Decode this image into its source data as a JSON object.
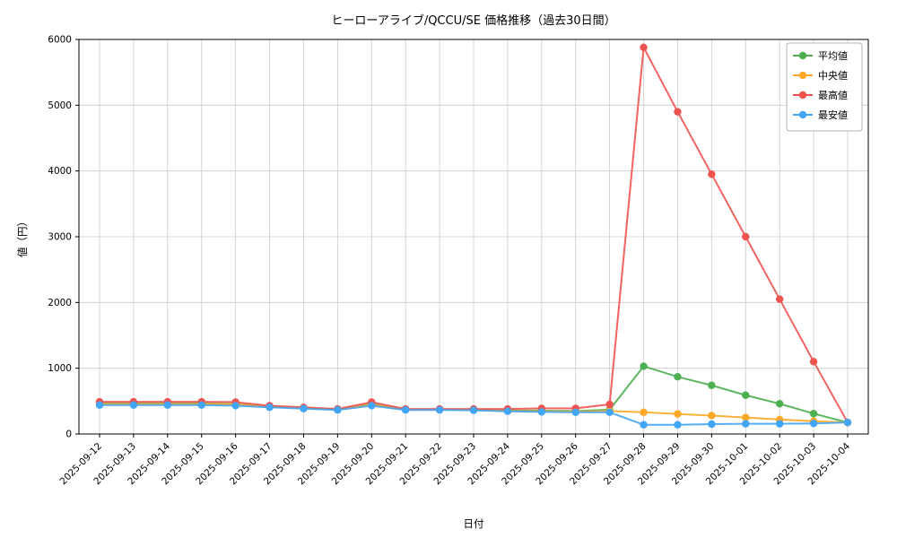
{
  "chart_data": {
    "type": "line",
    "title": "ヒーローアライブ/QCCU/SE 価格推移（過去30日間）",
    "xlabel": "日付",
    "ylabel": "値（円）",
    "ylim": [
      0,
      6000
    ],
    "ytick_step": 1000,
    "grid": true,
    "legend_position": "upper right",
    "categories": [
      "2025-09-12",
      "2025-09-13",
      "2025-09-14",
      "2025-09-15",
      "2025-09-16",
      "2025-09-17",
      "2025-09-18",
      "2025-09-19",
      "2025-09-20",
      "2025-09-21",
      "2025-09-22",
      "2025-09-23",
      "2025-09-24",
      "2025-09-25",
      "2025-09-26",
      "2025-09-27",
      "2025-09-28",
      "2025-09-29",
      "2025-09-30",
      "2025-10-01",
      "2025-10-02",
      "2025-10-03",
      "2025-10-04"
    ],
    "series": [
      {
        "name": "平均値",
        "color": "#4caf50",
        "values": [
          465,
          465,
          465,
          465,
          455,
          420,
          400,
          375,
          455,
          375,
          375,
          370,
          360,
          355,
          350,
          370,
          1030,
          870,
          740,
          590,
          460,
          310,
          175
        ]
      },
      {
        "name": "中央値",
        "color": "#ffa726",
        "values": [
          455,
          455,
          455,
          455,
          450,
          415,
          395,
          370,
          445,
          370,
          370,
          365,
          350,
          345,
          340,
          350,
          330,
          305,
          280,
          250,
          220,
          195,
          175
        ]
      },
      {
        "name": "最高値",
        "color": "#ef5350",
        "values": [
          490,
          490,
          490,
          490,
          485,
          430,
          405,
          380,
          485,
          380,
          380,
          380,
          380,
          390,
          390,
          450,
          5880,
          4900,
          3950,
          3000,
          2050,
          1100,
          175
        ]
      },
      {
        "name": "最安値",
        "color": "#42a5f5",
        "values": [
          440,
          440,
          440,
          440,
          430,
          405,
          385,
          365,
          430,
          365,
          365,
          360,
          345,
          335,
          330,
          330,
          140,
          140,
          150,
          155,
          155,
          160,
          175
        ]
      }
    ],
    "colors": {
      "grid": "#cccccc",
      "axis": "#000000",
      "tick_label": "#000000",
      "legend_border": "#b3b3b3",
      "background": "#ffffff"
    }
  }
}
